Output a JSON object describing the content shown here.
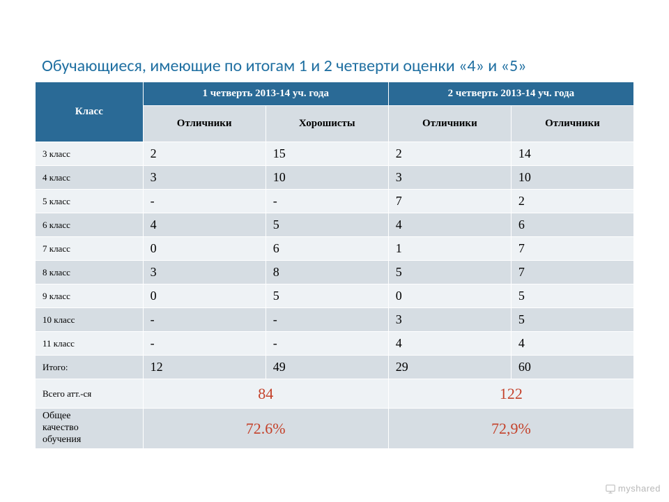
{
  "title": "Обучающиеся, имеющие по итогам 1 и 2 четверти   оценки «4» и «5»",
  "table": {
    "type": "table",
    "header_bg": "#2a6a96",
    "header_color": "#ffffff",
    "sub_bg": "#d6dde3",
    "row_odd_bg": "#eef2f5",
    "row_even_bg": "#d6dde3",
    "border_color": "#ffffff",
    "title_color": "#1f6fa1",
    "accent_color": "#c4412a",
    "header_font": "Georgia",
    "label_font": "Georgia",
    "title_fontsize": 24,
    "header_fontsize": 15,
    "label_fontsize": 13,
    "cell_fontsize": 18,
    "big_fontsize": 22,
    "columns": {
      "c0": "Класс",
      "c1": "1 четверть 2013-14 уч. года",
      "c2": "2 четверть 2013-14 уч. года"
    },
    "subcolumns": {
      "s1": "Отличники",
      "s2": "Хорошисты",
      "s3": "Отличники",
      "s4": "Отличники"
    },
    "rows": [
      {
        "label": "3 класс",
        "v": [
          "2",
          "15",
          "2",
          "14"
        ]
      },
      {
        "label": "4 класс",
        "v": [
          "3",
          "10",
          "3",
          "10"
        ]
      },
      {
        "label": "5 класс",
        "v": [
          "-",
          "-",
          "7",
          "2"
        ]
      },
      {
        "label": "6 класс",
        "v": [
          "4",
          "5",
          "4",
          "6"
        ]
      },
      {
        "label": "7 класс",
        "v": [
          "0",
          "6",
          "1",
          "7"
        ]
      },
      {
        "label": "8 класс",
        "v": [
          "3",
          "8",
          "5",
          "7"
        ]
      },
      {
        "label": "9 класс",
        "v": [
          "0",
          "5",
          "0",
          "5"
        ]
      },
      {
        "label": "10 класс",
        "v": [
          "-",
          "-",
          "3",
          "5"
        ]
      },
      {
        "label": "11 класс",
        "v": [
          "-",
          "-",
          "4",
          "4"
        ]
      }
    ],
    "totals": {
      "label": "Итого:",
      "v": [
        "12",
        "49",
        "29",
        "60"
      ]
    },
    "att": {
      "label": "Всего атт.-ся",
      "q1": "84",
      "q2": "122"
    },
    "quality": {
      "label": "Общее\nкачество\nобучения",
      "q1": "72.6%",
      "q2": "72,9%"
    }
  },
  "watermark": "myshared"
}
